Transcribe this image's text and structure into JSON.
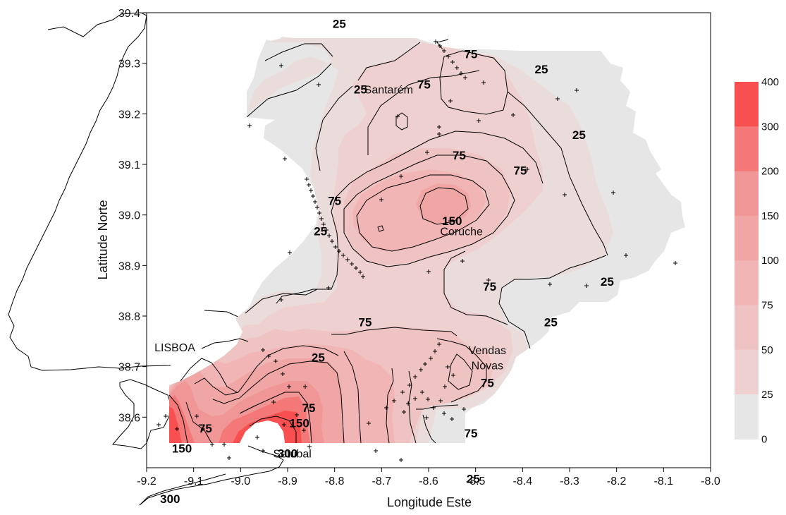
{
  "chart_data": {
    "type": "contour-map",
    "xlabel": "Longitude Este",
    "ylabel": "Latitude Norte",
    "x_ticks": [
      "-9.2",
      "-9.1",
      "-9.0",
      "-8.9",
      "-8.8",
      "-8.7",
      "-8.6",
      "-8.5",
      "-8.4",
      "-8.3",
      "-8.2",
      "-8.1",
      "-8.0"
    ],
    "y_ticks": [
      "39.4",
      "39.3",
      "39.2",
      "39.1",
      "39.0",
      "38.9",
      "38.8",
      "38.7",
      "38.6"
    ],
    "xlim": [
      -9.2,
      -8.0
    ],
    "ylim": [
      38.5,
      39.4
    ],
    "legend": {
      "placement": "right",
      "levels": [
        "400",
        "300",
        "200",
        "150",
        "100",
        "75",
        "50",
        "25",
        "0"
      ],
      "colors": [
        "#f85050",
        "#f47878",
        "#f09696",
        "#f1a6a6",
        "#f1b5b5",
        "#f0c3c3",
        "#efd0d0",
        "#ebdcdc",
        "#e6e6e6"
      ]
    },
    "places": [
      {
        "name": "Santarém",
        "lon": -8.685,
        "lat": 39.24
      },
      {
        "name": "Coruche",
        "lon": -8.53,
        "lat": 38.96
      },
      {
        "name": "LISBOA",
        "lon": -9.14,
        "lat": 38.73
      },
      {
        "name": "Vendas",
        "lon": -8.475,
        "lat": 38.725
      },
      {
        "name": "Novas",
        "lon": -8.475,
        "lat": 38.695
      },
      {
        "name": "Setúbal",
        "lon": -8.89,
        "lat": 38.52
      }
    ],
    "contour_labels": [
      {
        "text": "25",
        "lon": -8.79,
        "lat": 39.37
      },
      {
        "text": "25",
        "lon": -8.745,
        "lat": 39.24
      },
      {
        "text": "75",
        "lon": -8.61,
        "lat": 39.25
      },
      {
        "text": "75",
        "lon": -8.51,
        "lat": 39.31
      },
      {
        "text": "25",
        "lon": -8.36,
        "lat": 39.28
      },
      {
        "text": "25",
        "lon": -8.28,
        "lat": 39.15
      },
      {
        "text": "75",
        "lon": -8.535,
        "lat": 39.11
      },
      {
        "text": "75",
        "lon": -8.405,
        "lat": 39.08
      },
      {
        "text": "25",
        "lon": -8.83,
        "lat": 38.96
      },
      {
        "text": "75",
        "lon": -8.8,
        "lat": 39.02
      },
      {
        "text": "150",
        "lon": -8.55,
        "lat": 38.98
      },
      {
        "text": "75",
        "lon": -8.47,
        "lat": 38.85
      },
      {
        "text": "25",
        "lon": -8.22,
        "lat": 38.86
      },
      {
        "text": "25",
        "lon": -8.34,
        "lat": 38.78
      },
      {
        "text": "75",
        "lon": -8.735,
        "lat": 38.78
      },
      {
        "text": "25",
        "lon": -8.835,
        "lat": 38.71
      },
      {
        "text": "75",
        "lon": -8.475,
        "lat": 38.66
      },
      {
        "text": "75",
        "lon": -8.855,
        "lat": 38.61
      },
      {
        "text": "75",
        "lon": -9.075,
        "lat": 38.57
      },
      {
        "text": "150",
        "lon": -9.125,
        "lat": 38.53
      },
      {
        "text": "150",
        "lon": -8.875,
        "lat": 38.58
      },
      {
        "text": "300",
        "lon": -9.15,
        "lat": 38.43
      },
      {
        "text": "300",
        "lon": -8.9,
        "lat": 38.52
      },
      {
        "text": "75",
        "lon": -8.51,
        "lat": 38.56
      },
      {
        "text": "25",
        "lon": -8.505,
        "lat": 38.47
      }
    ]
  }
}
